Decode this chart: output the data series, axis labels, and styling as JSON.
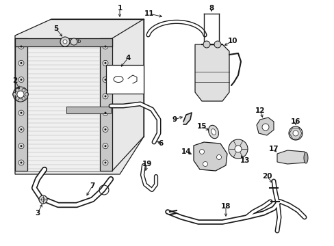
{
  "background_color": "#ffffff",
  "line_color": "#1a1a1a",
  "label_color": "#111111",
  "fig_width": 4.89,
  "fig_height": 3.6,
  "dpi": 100
}
